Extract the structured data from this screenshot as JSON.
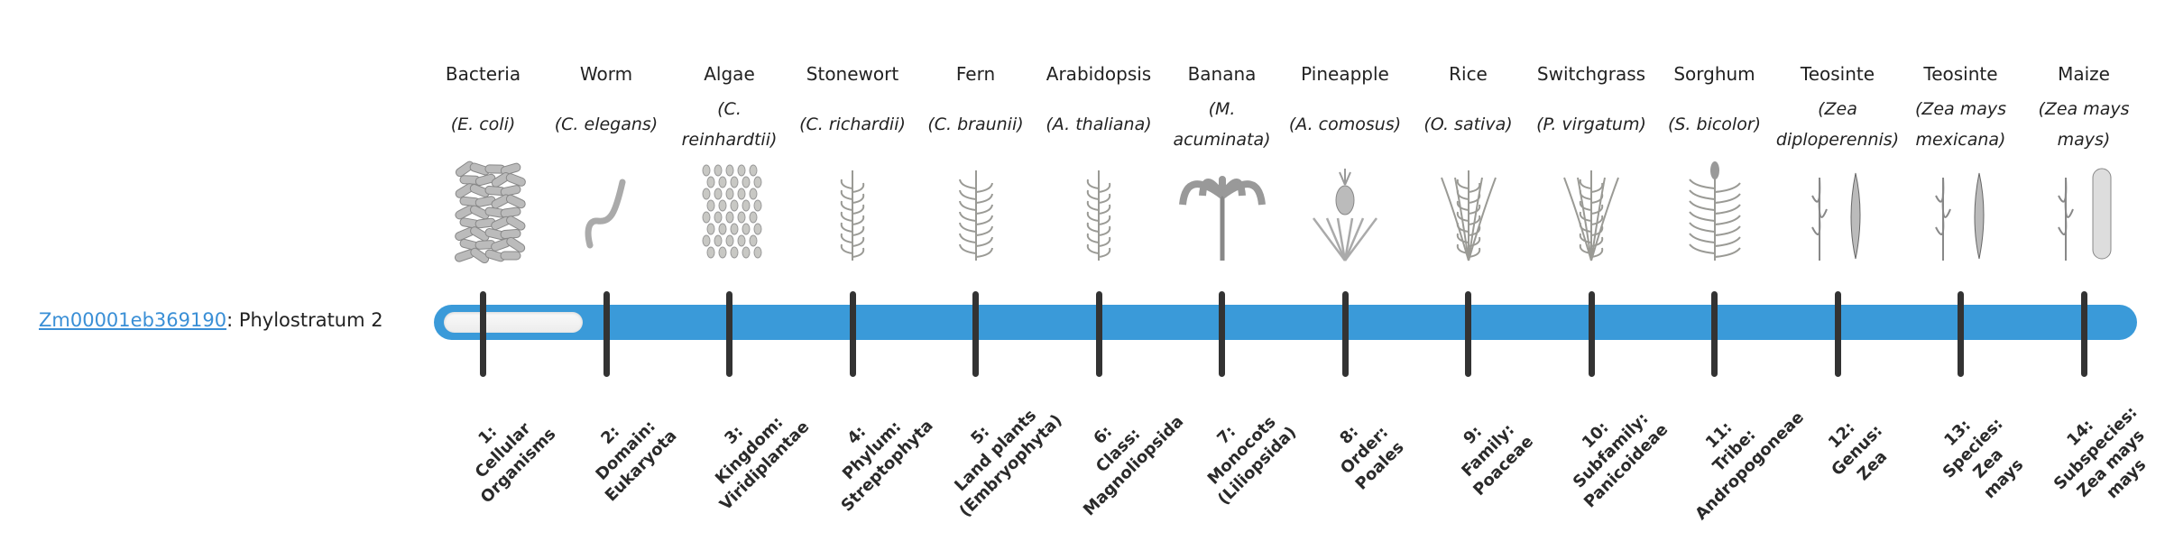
{
  "gene": {
    "id": "Zm00001eb369190",
    "suffix": ": Phylostratum 2",
    "phylostratum": 2
  },
  "colors": {
    "bar": "#3a9ad9",
    "link": "#3a8fd6",
    "tick": "#333333",
    "empty": "#f2f2f2"
  },
  "organisms": [
    {
      "common": "Bacteria",
      "species": "(E. coli)",
      "icon": "bacteria-icon"
    },
    {
      "common": "Worm",
      "species": "(C. elegans)",
      "icon": "worm-icon"
    },
    {
      "common": "Algae",
      "species": "(C. reinhardtii)",
      "icon": "algae-icon"
    },
    {
      "common": "Stonewort",
      "species": "(C. richardii)",
      "icon": "stonewort-icon"
    },
    {
      "common": "Fern",
      "species": "(C. braunii)",
      "icon": "fern-icon"
    },
    {
      "common": "Arabidopsis",
      "species": "(A. thaliana)",
      "icon": "arabidopsis-icon"
    },
    {
      "common": "Banana",
      "species": "(M. acuminata)",
      "icon": "banana-icon"
    },
    {
      "common": "Pineapple",
      "species": "(A. comosus)",
      "icon": "pineapple-icon"
    },
    {
      "common": "Rice",
      "species": "(O. sativa)",
      "icon": "rice-icon"
    },
    {
      "common": "Switchgrass",
      "species": "(P. virgatum)",
      "icon": "switchgrass-icon"
    },
    {
      "common": "Sorghum",
      "species": "(S. bicolor)",
      "icon": "sorghum-icon"
    },
    {
      "common": "Teosinte",
      "species": "(Zea diploperennis)",
      "icon": "teosinte-icon"
    },
    {
      "common": "Teosinte",
      "species": "(Zea mays mexicana)",
      "icon": "teosinte-icon"
    },
    {
      "common": "Maize",
      "species": "(Zea mays mays)",
      "icon": "maize-icon"
    }
  ],
  "strata": [
    [
      "1:",
      "Cellular",
      "Organisms"
    ],
    [
      "2:",
      "Domain:",
      "Eukaryota"
    ],
    [
      "3:",
      "Kingdom:",
      "Viridiplantae"
    ],
    [
      "4:",
      "Phylum:",
      "Streptophyta"
    ],
    [
      "5:",
      "Land plants",
      "(Embryophyta)"
    ],
    [
      "6:",
      "Class:",
      "Magnoliopsida"
    ],
    [
      "7:",
      "Monocots",
      "(Liliopsida)"
    ],
    [
      "8:",
      "Order:",
      "Poales"
    ],
    [
      "9:",
      "Family:",
      "Poaceae"
    ],
    [
      "10:",
      "Subfamily:",
      "Panicoideae"
    ],
    [
      "11:",
      "Tribe:",
      "Andropogoneae"
    ],
    [
      "12:",
      "Genus:",
      "Zea"
    ],
    [
      "13:",
      "Species:",
      "Zea",
      "mays"
    ],
    [
      "14:",
      "Subspecies:",
      "Zea mays",
      "mays"
    ]
  ]
}
